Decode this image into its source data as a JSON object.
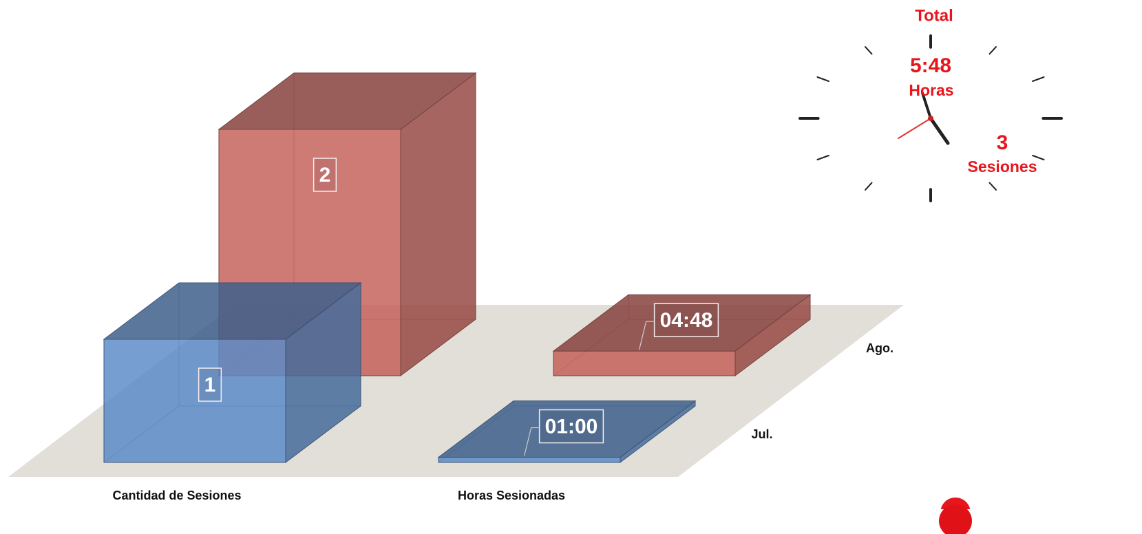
{
  "chart_data": {
    "type": "bar3d",
    "categories": [
      "Cantidad de Sesiones",
      "Horas Sesionadas"
    ],
    "series": [
      {
        "name": "Jul.",
        "color": "#5b8bc8",
        "values": [
          1,
          0.041667
        ],
        "value_labels": [
          null,
          "01:00"
        ]
      },
      {
        "name": "Ago.",
        "color": "#c4605a",
        "values": [
          2,
          0.2
        ],
        "value_labels": [
          null,
          "04:48"
        ]
      }
    ]
  },
  "summary": {
    "title": "Total",
    "hours": "5:48",
    "hours_label": "Horas",
    "sessions": 3,
    "sessions_label": "Sesiones"
  }
}
